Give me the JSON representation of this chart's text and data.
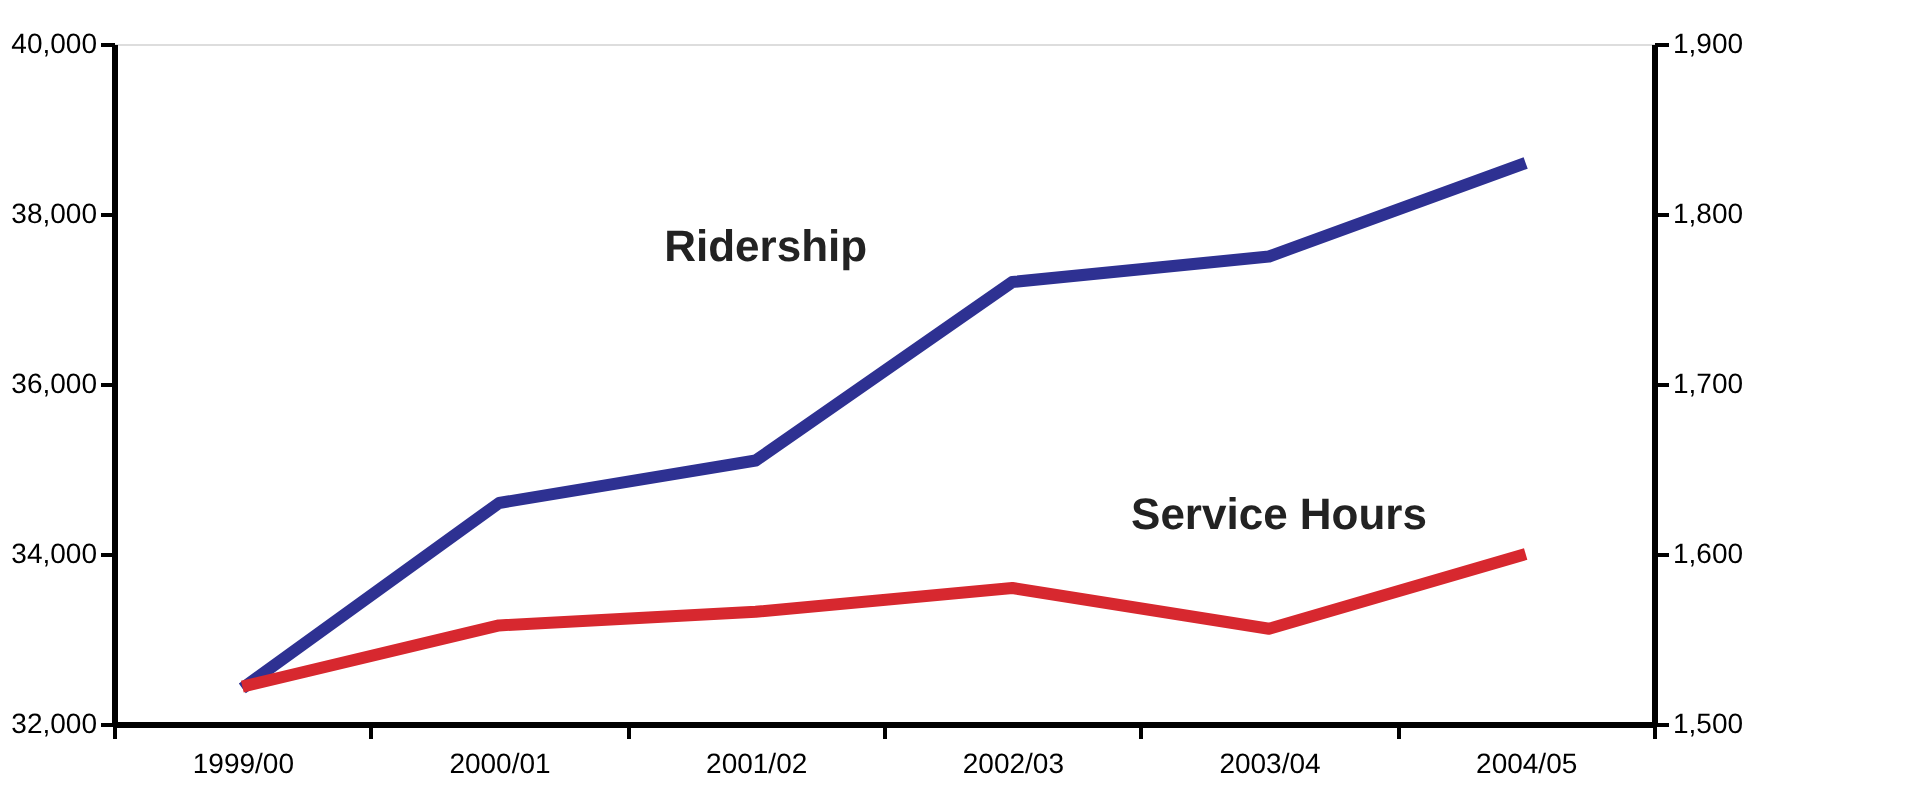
{
  "chart_data": {
    "type": "line",
    "categories": [
      "1999/00",
      "2000/01",
      "2001/02",
      "2002/03",
      "2003/04",
      "2004/05"
    ],
    "series": [
      {
        "name": "Ridership",
        "color": "#2e3192",
        "values": [
          32420,
          34600,
          35100,
          37200,
          37500,
          38600
        ]
      },
      {
        "name": "Service Hours",
        "color": "#d7282f",
        "axis": "y2",
        "values": [
          1522,
          1558,
          1566,
          1580,
          1556,
          1600
        ]
      }
    ],
    "ylim": [
      32000,
      40000
    ],
    "yticks": [
      {
        "value": 32000,
        "label": "32,000"
      },
      {
        "value": 34000,
        "label": "34,000"
      },
      {
        "value": 36000,
        "label": "36,000"
      },
      {
        "value": 38000,
        "label": "38,000"
      },
      {
        "value": 40000,
        "label": "40,000"
      }
    ],
    "y2lim": [
      1500,
      1900
    ],
    "y2ticks": [
      {
        "value": 1500,
        "label": "1,500"
      },
      {
        "value": 1600,
        "label": "1,600"
      },
      {
        "value": 1700,
        "label": "1,700"
      },
      {
        "value": 1800,
        "label": "1,800"
      },
      {
        "value": 1900,
        "label": "1,900"
      }
    ],
    "grid": false,
    "marker": "none",
    "line_style": "solid"
  }
}
